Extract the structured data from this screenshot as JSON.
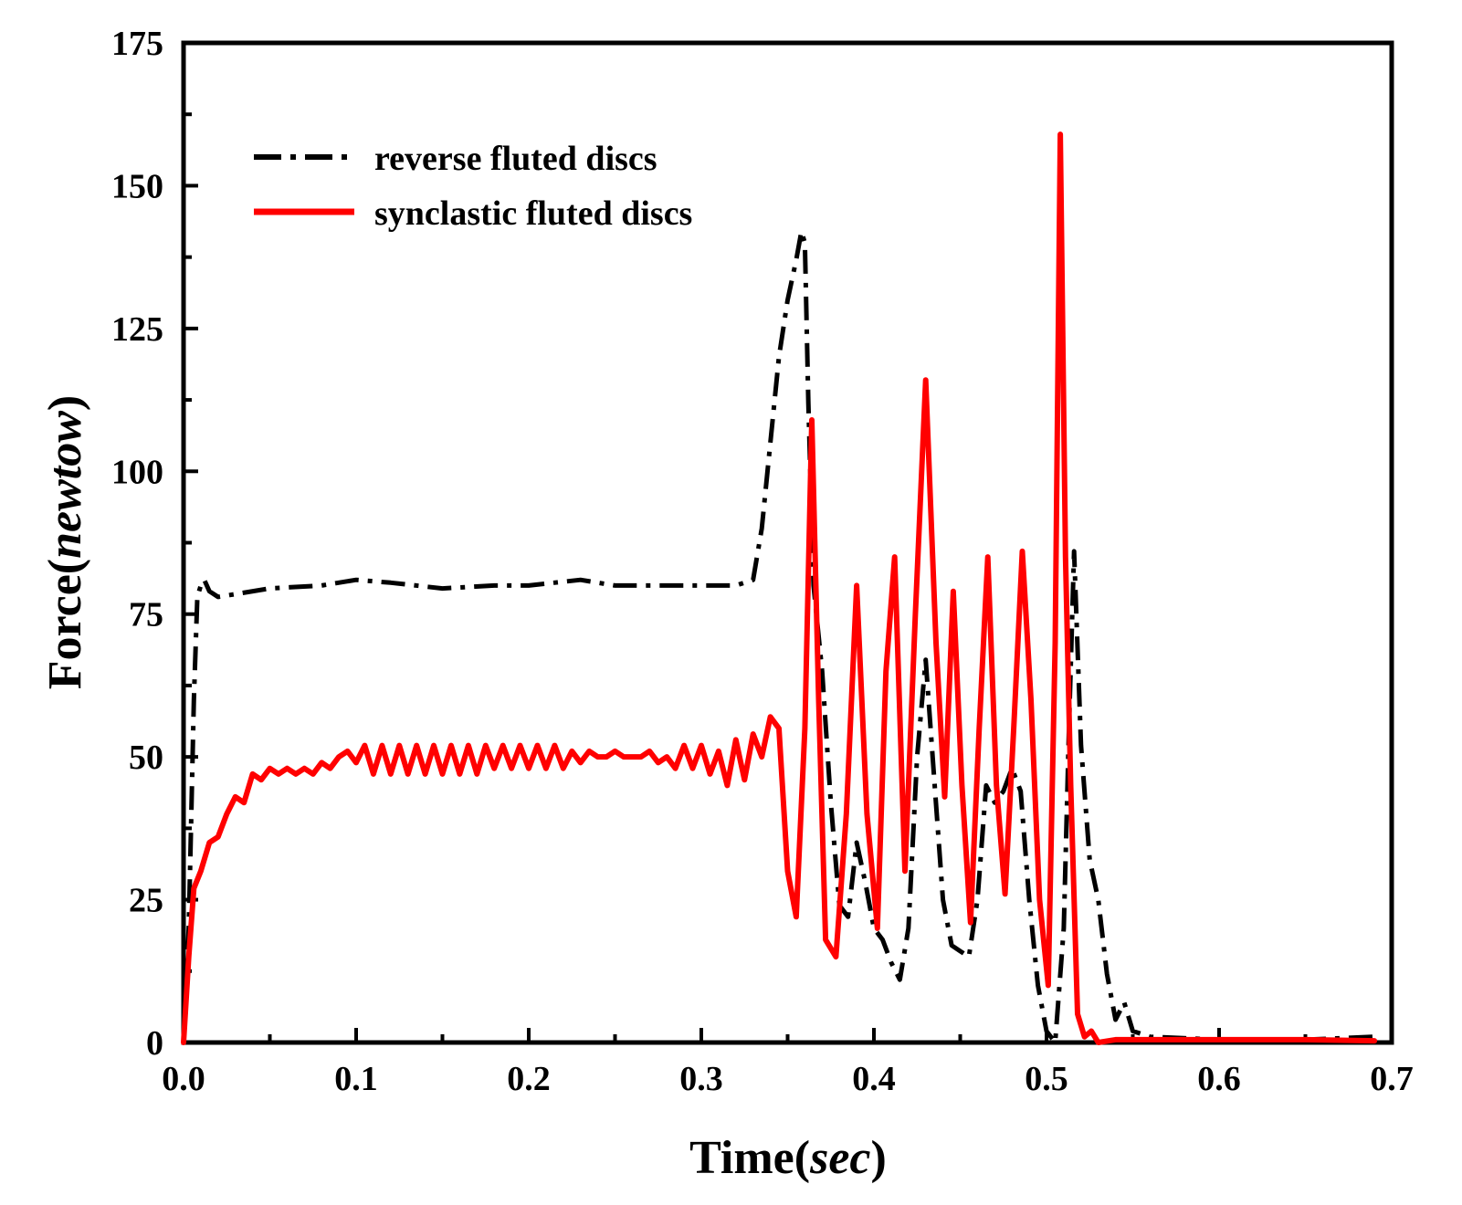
{
  "chart_data": {
    "type": "line",
    "title": "",
    "xlabel": {
      "prefix": "Time(",
      "unit": "sec",
      "suffix": ")"
    },
    "ylabel": {
      "prefix": "Force(",
      "unit": "newtow",
      "suffix": ")"
    },
    "xlim": [
      0,
      0.7
    ],
    "ylim": [
      0,
      175
    ],
    "xticks": [
      0.0,
      0.1,
      0.2,
      0.3,
      0.4,
      0.5,
      0.6,
      0.7
    ],
    "xtick_labels": [
      "0.0",
      "0.1",
      "0.2",
      "0.3",
      "0.4",
      "0.5",
      "0.6",
      "0.7"
    ],
    "yticks": [
      0,
      25,
      50,
      75,
      100,
      125,
      150,
      175
    ],
    "ytick_labels": [
      "0",
      "25",
      "50",
      "75",
      "100",
      "125",
      "150",
      "175"
    ],
    "grid": false,
    "legend_position": "top-left",
    "series": [
      {
        "name": "reverse fluted discs",
        "color": "#000000",
        "style": "dash-dot",
        "x": [
          0.0,
          0.003,
          0.006,
          0.008,
          0.01,
          0.012,
          0.015,
          0.02,
          0.03,
          0.05,
          0.08,
          0.1,
          0.12,
          0.15,
          0.18,
          0.2,
          0.23,
          0.25,
          0.28,
          0.3,
          0.32,
          0.33,
          0.335,
          0.34,
          0.345,
          0.35,
          0.355,
          0.358,
          0.36,
          0.362,
          0.365,
          0.37,
          0.375,
          0.38,
          0.385,
          0.39,
          0.395,
          0.4,
          0.405,
          0.41,
          0.415,
          0.42,
          0.425,
          0.43,
          0.435,
          0.44,
          0.445,
          0.45,
          0.455,
          0.46,
          0.465,
          0.47,
          0.475,
          0.48,
          0.485,
          0.49,
          0.495,
          0.5,
          0.505,
          0.51,
          0.513,
          0.516,
          0.52,
          0.525,
          0.53,
          0.535,
          0.54,
          0.545,
          0.55,
          0.56,
          0.6,
          0.65,
          0.69
        ],
        "y": [
          0,
          20,
          60,
          78,
          80,
          81,
          79,
          78,
          78.5,
          79.5,
          80,
          81,
          80.5,
          79.5,
          80,
          80,
          81,
          80,
          80,
          80,
          80,
          81,
          90,
          105,
          120,
          130,
          137,
          142,
          140,
          112,
          80,
          65,
          42,
          24,
          22,
          35,
          28,
          20,
          18,
          14,
          11,
          20,
          50,
          67,
          46,
          25,
          17,
          16,
          15,
          25,
          45,
          42,
          44,
          48,
          44,
          25,
          10,
          2,
          0,
          20,
          55,
          86,
          52,
          32,
          25,
          12,
          4,
          7,
          2,
          1,
          0.5,
          0.5,
          1
        ]
      },
      {
        "name": "synclastic fluted discs",
        "color": "#ff0000",
        "style": "solid",
        "x": [
          0.0,
          0.003,
          0.006,
          0.01,
          0.015,
          0.02,
          0.025,
          0.03,
          0.035,
          0.04,
          0.045,
          0.05,
          0.055,
          0.06,
          0.065,
          0.07,
          0.075,
          0.08,
          0.085,
          0.09,
          0.095,
          0.1,
          0.105,
          0.11,
          0.115,
          0.12,
          0.125,
          0.13,
          0.135,
          0.14,
          0.145,
          0.15,
          0.155,
          0.16,
          0.165,
          0.17,
          0.175,
          0.18,
          0.185,
          0.19,
          0.195,
          0.2,
          0.205,
          0.21,
          0.215,
          0.22,
          0.225,
          0.23,
          0.235,
          0.24,
          0.245,
          0.25,
          0.255,
          0.26,
          0.265,
          0.27,
          0.275,
          0.28,
          0.285,
          0.29,
          0.295,
          0.3,
          0.305,
          0.31,
          0.315,
          0.32,
          0.325,
          0.33,
          0.335,
          0.34,
          0.345,
          0.35,
          0.355,
          0.36,
          0.364,
          0.368,
          0.372,
          0.378,
          0.384,
          0.39,
          0.396,
          0.402,
          0.407,
          0.412,
          0.418,
          0.424,
          0.43,
          0.436,
          0.441,
          0.446,
          0.451,
          0.456,
          0.461,
          0.466,
          0.471,
          0.476,
          0.481,
          0.486,
          0.491,
          0.496,
          0.501,
          0.505,
          0.508,
          0.511,
          0.514,
          0.518,
          0.522,
          0.526,
          0.53,
          0.54,
          0.6,
          0.65,
          0.69
        ],
        "y": [
          0,
          15,
          27,
          30,
          35,
          36,
          40,
          43,
          42,
          47,
          46,
          48,
          47,
          48,
          47,
          48,
          47,
          49,
          48,
          50,
          51,
          49,
          52,
          47,
          52,
          47,
          52,
          47,
          52,
          47,
          52,
          47,
          52,
          47,
          52,
          47,
          52,
          48,
          52,
          48,
          52,
          48,
          52,
          48,
          52,
          48,
          51,
          49,
          51,
          50,
          50,
          51,
          50,
          50,
          50,
          51,
          49,
          50,
          48,
          52,
          48,
          52,
          47,
          51,
          45,
          53,
          46,
          54,
          50,
          57,
          55,
          30,
          22,
          55,
          109,
          60,
          18,
          15,
          40,
          80,
          40,
          20,
          65,
          85,
          30,
          75,
          116,
          70,
          43,
          79,
          45,
          21,
          55,
          85,
          45,
          26,
          55,
          86,
          60,
          25,
          10,
          70,
          159,
          85,
          45,
          5,
          1,
          2,
          0,
          0.5,
          0.5,
          0.5,
          0.3
        ]
      }
    ]
  }
}
